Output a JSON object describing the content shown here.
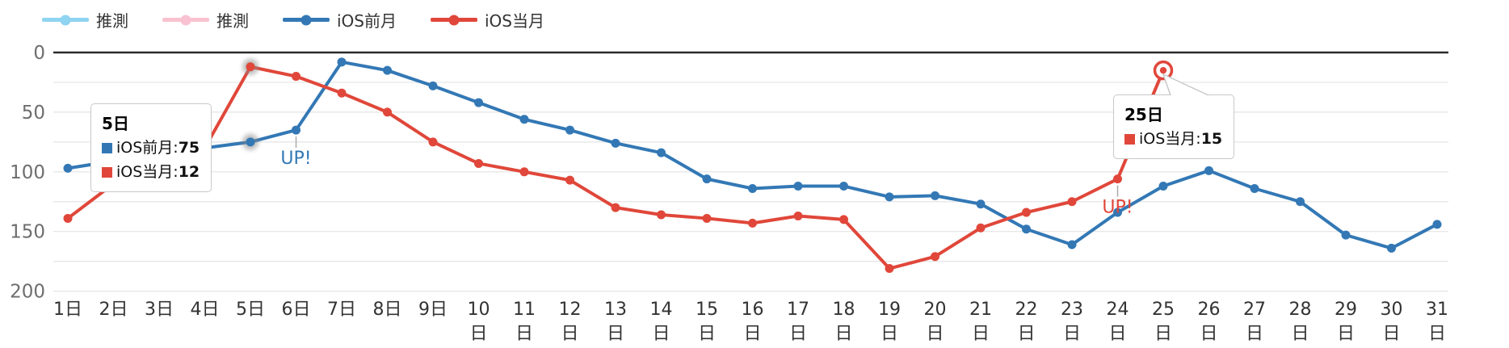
{
  "colors": {
    "forecast_prev": "#8fd4f0",
    "forecast_cur": "#f9c2d0",
    "prev_month": "#3378b5",
    "cur_month": "#e0473a",
    "grid": "#e4e4e4",
    "axis_line": "#2a2a2a",
    "y_label": "#6e6e6e",
    "x_label": "#333333",
    "connector": "#aaaaaa",
    "tooltip_border": "#c8c8c8"
  },
  "legend": {
    "items": [
      {
        "label": "推測",
        "color": "#8fd4f0"
      },
      {
        "label": "推測",
        "color": "#f9c2d0"
      },
      {
        "label": "iOS前月",
        "color": "#3378b5"
      },
      {
        "label": "iOS当月",
        "color": "#e0473a"
      }
    ]
  },
  "chart_data": {
    "type": "line",
    "title": "",
    "xlabel": "",
    "ylabel": "",
    "y_axis": {
      "ticks": [
        0,
        50,
        100,
        150,
        200
      ],
      "min": 0,
      "max": 200,
      "inverted": true,
      "minor_grid_step": 25,
      "grid": true
    },
    "legend_position": "top-left",
    "categories": [
      "1日",
      "2日",
      "3日",
      "4日",
      "5日",
      "6日",
      "7日",
      "8日",
      "9日",
      "10日",
      "11日",
      "12日",
      "13日",
      "14日",
      "15日",
      "16日",
      "17日",
      "18日",
      "19日",
      "20日",
      "21日",
      "22日",
      "23日",
      "24日",
      "25日",
      "26日",
      "27日",
      "28日",
      "29日",
      "30日",
      "31日"
    ],
    "series": [
      {
        "name": "推測",
        "color": "#8fd4f0",
        "legend_only": true,
        "values": []
      },
      {
        "name": "推測",
        "color": "#f9c2d0",
        "legend_only": true,
        "values": []
      },
      {
        "name": "iOS前月",
        "color": "#3378b5",
        "values": [
          97,
          91,
          86,
          80,
          75,
          65,
          8,
          15,
          28,
          42,
          56,
          65,
          76,
          84,
          106,
          114,
          112,
          112,
          121,
          120,
          127,
          148,
          161,
          134,
          112,
          99,
          114,
          125,
          153,
          164,
          144
        ]
      },
      {
        "name": "iOS当月",
        "color": "#e0473a",
        "values": [
          139,
          110,
          95,
          80,
          12,
          20,
          34,
          50,
          75,
          93,
          100,
          107,
          130,
          136,
          139,
          143,
          137,
          140,
          181,
          171,
          147,
          134,
          125,
          106,
          15
        ]
      }
    ],
    "annotations": [
      {
        "text": "UP!",
        "series": "iOS前月",
        "day": 6,
        "color": "#3378b5"
      },
      {
        "text": "UP!",
        "series": "iOS当月",
        "day": 24,
        "color": "#e0473a"
      }
    ],
    "highlighted_day": 5,
    "selected_point": {
      "series": "iOS当月",
      "day": 25
    }
  },
  "tooltips": {
    "day5": {
      "title": "5日",
      "rows": [
        {
          "label": "iOS前月",
          "sep": ": ",
          "value": "75",
          "color": "#3378b5"
        },
        {
          "label": "iOS当月",
          "sep": ": ",
          "value": "12",
          "color": "#e0473a"
        }
      ]
    },
    "day25": {
      "title": "25日",
      "rows": [
        {
          "label": "iOS当月",
          "sep": ": ",
          "value": "15",
          "color": "#e0473a"
        }
      ]
    }
  }
}
